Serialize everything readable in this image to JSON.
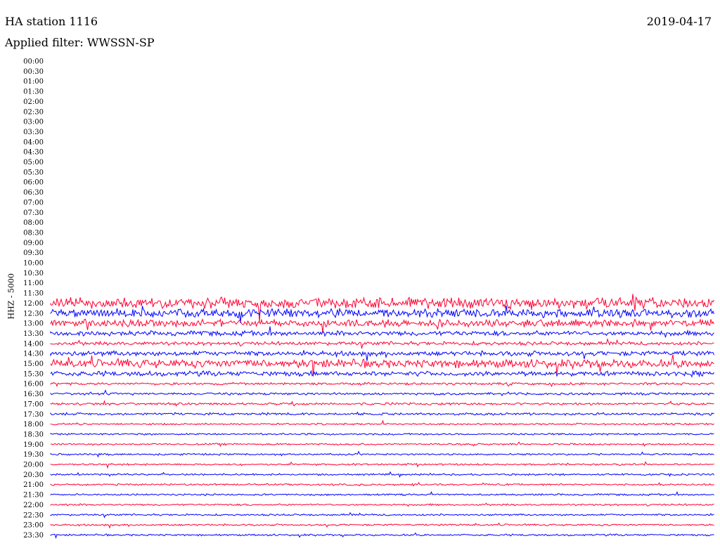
{
  "header": {
    "station": "HA station 1116",
    "date": "2019-04-17",
    "filter": "Applied filter: WWSSN-SP"
  },
  "chart_data": {
    "type": "line",
    "title": "HA station 1116",
    "subtitle": "Applied filter: WWSSN-SP",
    "date": "2019-04-17",
    "ylabel": "HHZ - 5000",
    "xlabel": "",
    "grid": false,
    "colors": [
      "#ff0033",
      "#0000ff"
    ],
    "rows": [
      {
        "label": "00:00",
        "color": "#ff0033",
        "amp": 0
      },
      {
        "label": "00:30",
        "color": "#0000ff",
        "amp": 0
      },
      {
        "label": "01:00",
        "color": "#ff0033",
        "amp": 0
      },
      {
        "label": "01:30",
        "color": "#0000ff",
        "amp": 0
      },
      {
        "label": "02:00",
        "color": "#ff0033",
        "amp": 0
      },
      {
        "label": "02:30",
        "color": "#0000ff",
        "amp": 0
      },
      {
        "label": "03:00",
        "color": "#ff0033",
        "amp": 0
      },
      {
        "label": "03:30",
        "color": "#0000ff",
        "amp": 0
      },
      {
        "label": "04:00",
        "color": "#ff0033",
        "amp": 0
      },
      {
        "label": "04:30",
        "color": "#0000ff",
        "amp": 0
      },
      {
        "label": "05:00",
        "color": "#ff0033",
        "amp": 0
      },
      {
        "label": "05:30",
        "color": "#0000ff",
        "amp": 0
      },
      {
        "label": "06:00",
        "color": "#ff0033",
        "amp": 0
      },
      {
        "label": "06:30",
        "color": "#0000ff",
        "amp": 0
      },
      {
        "label": "07:00",
        "color": "#ff0033",
        "amp": 0
      },
      {
        "label": "07:30",
        "color": "#0000ff",
        "amp": 0
      },
      {
        "label": "08:00",
        "color": "#ff0033",
        "amp": 0
      },
      {
        "label": "08:30",
        "color": "#0000ff",
        "amp": 0
      },
      {
        "label": "09:00",
        "color": "#ff0033",
        "amp": 0
      },
      {
        "label": "09:30",
        "color": "#0000ff",
        "amp": 0
      },
      {
        "label": "10:00",
        "color": "#ff0033",
        "amp": 0
      },
      {
        "label": "10:30",
        "color": "#0000ff",
        "amp": 0
      },
      {
        "label": "11:00",
        "color": "#ff0033",
        "amp": 0
      },
      {
        "label": "11:30",
        "color": "#0000ff",
        "amp": 0
      },
      {
        "label": "12:00",
        "color": "#ff0033",
        "amp": 9
      },
      {
        "label": "12:30",
        "color": "#0000ff",
        "amp": 7
      },
      {
        "label": "13:00",
        "color": "#ff0033",
        "amp": 6
      },
      {
        "label": "13:30",
        "color": "#0000ff",
        "amp": 4
      },
      {
        "label": "14:00",
        "color": "#ff0033",
        "amp": 3
      },
      {
        "label": "14:30",
        "color": "#0000ff",
        "amp": 4
      },
      {
        "label": "15:00",
        "color": "#ff0033",
        "amp": 7
      },
      {
        "label": "15:30",
        "color": "#0000ff",
        "amp": 4
      },
      {
        "label": "16:00",
        "color": "#ff0033",
        "amp": 2
      },
      {
        "label": "16:30",
        "color": "#0000ff",
        "amp": 2
      },
      {
        "label": "17:00",
        "color": "#ff0033",
        "amp": 2
      },
      {
        "label": "17:30",
        "color": "#0000ff",
        "amp": 2
      },
      {
        "label": "18:00",
        "color": "#ff0033",
        "amp": 1.5
      },
      {
        "label": "18:30",
        "color": "#0000ff",
        "amp": 1.5
      },
      {
        "label": "19:00",
        "color": "#ff0033",
        "amp": 1.5
      },
      {
        "label": "19:30",
        "color": "#0000ff",
        "amp": 1.5
      },
      {
        "label": "20:00",
        "color": "#ff0033",
        "amp": 1.5
      },
      {
        "label": "20:30",
        "color": "#0000ff",
        "amp": 1.5
      },
      {
        "label": "21:00",
        "color": "#ff0033",
        "amp": 1.5
      },
      {
        "label": "21:30",
        "color": "#0000ff",
        "amp": 1.5
      },
      {
        "label": "22:00",
        "color": "#ff0033",
        "amp": 1.5
      },
      {
        "label": "22:30",
        "color": "#0000ff",
        "amp": 1.5
      },
      {
        "label": "23:00",
        "color": "#ff0033",
        "amp": 1.5
      },
      {
        "label": "23:30",
        "color": "#0000ff",
        "amp": 1.5
      }
    ]
  }
}
